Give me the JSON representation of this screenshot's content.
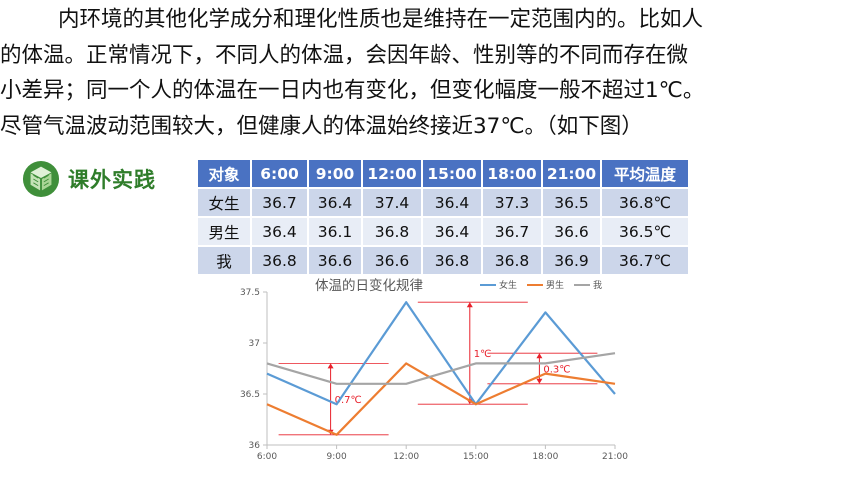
{
  "paragraph": {
    "lines": [
      "内环境的其他化学成分和理化性质也是维持在一定范围内的。比如人",
      "的体温。正常情况下，不同人的体温，会因年龄、性别等的不同而存在微",
      "小差异；同一个人的体温在一日内也有变化，但变化幅度一般不超过1℃。",
      "尽管气温波动范围较大，但健康人的体温始终接近37℃。（如下图）"
    ]
  },
  "badge": {
    "label": "课外实践",
    "icon": "leaf-cube-icon",
    "color": "#2f7d2a"
  },
  "table": {
    "headers": [
      "对象",
      "6:00",
      "9:00",
      "12:00",
      "15:00",
      "18:00",
      "21:00",
      "平均温度"
    ],
    "rows": [
      [
        "女生",
        "36.7",
        "36.4",
        "37.4",
        "36.4",
        "37.3",
        "36.5",
        "36.8℃"
      ],
      [
        "男生",
        "36.4",
        "36.1",
        "36.8",
        "36.4",
        "36.7",
        "36.6",
        "36.5℃"
      ],
      [
        "我",
        "36.8",
        "36.6",
        "36.6",
        "36.8",
        "36.8",
        "36.9",
        "36.7℃"
      ]
    ],
    "header_color": "#4a72c2"
  },
  "chart_data": {
    "type": "line",
    "title": "体温的日变化规律",
    "x": [
      "6:00",
      "9:00",
      "12:00",
      "15:00",
      "18:00",
      "21:00"
    ],
    "y_ticks": [
      "36",
      "36.5",
      "37",
      "37.5"
    ],
    "ylim": [
      36,
      37.5
    ],
    "legend_position": "top-right",
    "series": [
      {
        "name": "女生",
        "values": [
          36.7,
          36.4,
          37.4,
          36.4,
          37.3,
          36.5
        ],
        "color": "#5b9bd5"
      },
      {
        "name": "男生",
        "values": [
          36.4,
          36.1,
          36.8,
          36.4,
          36.7,
          36.6
        ],
        "color": "#ed7d31"
      },
      {
        "name": "我",
        "values": [
          36.8,
          36.6,
          36.6,
          36.8,
          36.8,
          36.9
        ],
        "color": "#a5a5a5"
      }
    ],
    "annotations": [
      {
        "text": "0.7℃",
        "low": 36.1,
        "high": 36.8,
        "x": "9:00"
      },
      {
        "text": "1℃",
        "low": 36.4,
        "high": 37.4,
        "x": "15:00"
      },
      {
        "text": "0.3℃",
        "low": 36.6,
        "high": 36.9,
        "x": "18:00"
      }
    ],
    "annotation_color": "#e8202a"
  }
}
